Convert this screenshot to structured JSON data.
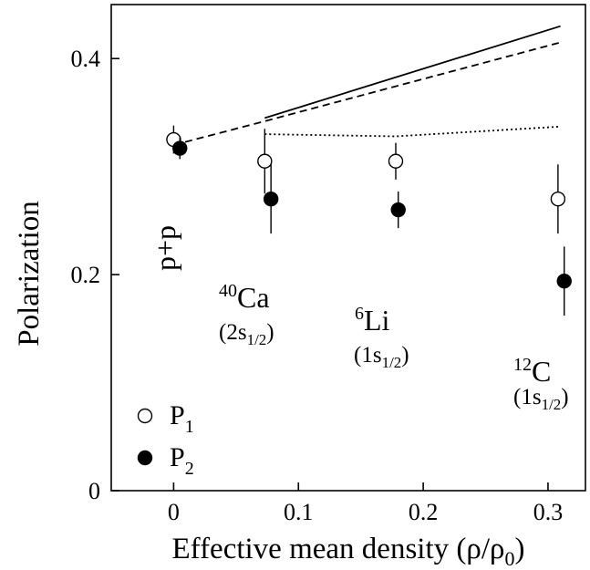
{
  "chart_data": {
    "type": "scatter",
    "xlabel": {
      "text": "Effective mean density (ρ/ρ",
      "sub": "0",
      "close": ")"
    },
    "ylabel": "Polarization",
    "xlim": [
      -0.05,
      0.33
    ],
    "ylim": [
      0,
      0.45
    ],
    "xticks": [
      0,
      0.1,
      0.2,
      0.3
    ],
    "xtick_labels": [
      "0",
      "0.1",
      "0.2",
      "0.3"
    ],
    "yticks": [
      0,
      0.2,
      0.4
    ],
    "ytick_labels": [
      "0",
      "0.2",
      "0.4"
    ],
    "grid": false,
    "legend_position": "bottom-left",
    "series": [
      {
        "name": "P",
        "sub": "1",
        "marker": "open-circle",
        "points": [
          {
            "x": 0.0,
            "y": 0.325,
            "err": 0.013
          },
          {
            "x": 0.073,
            "y": 0.305,
            "err": 0.03
          },
          {
            "x": 0.178,
            "y": 0.305,
            "err": 0.017
          },
          {
            "x": 0.308,
            "y": 0.27,
            "err": 0.032
          }
        ]
      },
      {
        "name": "P",
        "sub": "2",
        "marker": "filled-circle",
        "points": [
          {
            "x": 0.005,
            "y": 0.317,
            "err": 0.01
          },
          {
            "x": 0.078,
            "y": 0.27,
            "err": 0.032
          },
          {
            "x": 0.18,
            "y": 0.26,
            "err": 0.017
          },
          {
            "x": 0.313,
            "y": 0.194,
            "err": 0.032
          }
        ]
      }
    ],
    "curves": [
      {
        "style": "solid",
        "points": [
          [
            0.073,
            0.345
          ],
          [
            0.31,
            0.43
          ]
        ]
      },
      {
        "style": "dashed",
        "points": [
          [
            0.0,
            0.32
          ],
          [
            0.073,
            0.342
          ],
          [
            0.31,
            0.415
          ]
        ]
      },
      {
        "style": "dotted",
        "points": [
          [
            0.073,
            0.33
          ],
          [
            0.178,
            0.328
          ],
          [
            0.31,
            0.337
          ]
        ]
      }
    ],
    "annotations": [
      {
        "id": "pp",
        "text": "p+p"
      },
      {
        "id": "ca",
        "sup": "40",
        "text": "Ca",
        "state_pre": "(2s",
        "state_sub": "1/2",
        "state_post": ")"
      },
      {
        "id": "li",
        "sup": "6",
        "text": "Li",
        "state_pre": "(1s",
        "state_sub": "1/2",
        "state_post": ")"
      },
      {
        "id": "c",
        "sup": "12",
        "text": "C",
        "state_pre": "(1s",
        "state_sub": "1/2",
        "state_post": ")"
      }
    ]
  }
}
